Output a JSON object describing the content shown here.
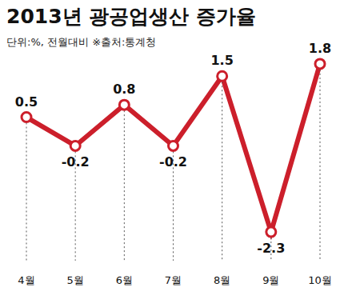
{
  "chart_data": {
    "type": "line",
    "title": "2013년 광공업생산 증가율",
    "subtitle": "단위:%, 전월대비 ※출처:통계청",
    "categories": [
      "4월",
      "5월",
      "6월",
      "7월",
      "8월",
      "9월",
      "10월"
    ],
    "values": [
      0.5,
      -0.2,
      0.8,
      -0.2,
      1.5,
      -2.3,
      1.8
    ],
    "color": "#cc1f2b",
    "marker": "circle",
    "line_style": "solid",
    "ylim": [
      -3,
      2.5
    ],
    "data_labels": true,
    "tick_labels": "x",
    "grid": false
  }
}
